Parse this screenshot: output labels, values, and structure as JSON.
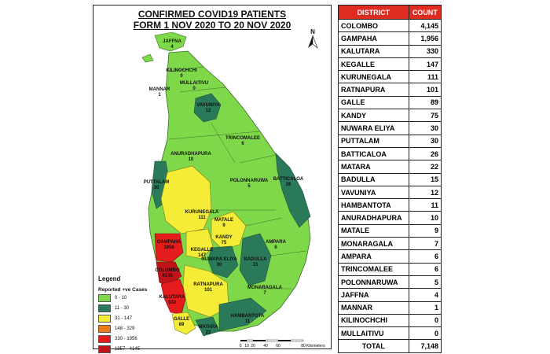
{
  "map": {
    "title_line1": "CONFIRMED COVID19 PATIENTS",
    "title_line2": "FORM 1 NOV 2020 TO 20 NOV 2020",
    "compass_label": "N",
    "legend_title": "Legend",
    "legend_subtitle": "Reported +ve Cases",
    "legend": [
      {
        "label": "0 - 10",
        "color": "#7fd84a"
      },
      {
        "label": "11 - 30",
        "color": "#2a7a5a"
      },
      {
        "label": "31 - 147",
        "color": "#f5ec38"
      },
      {
        "label": "148 - 329",
        "color": "#f07a1a"
      },
      {
        "label": "330 - 1956",
        "color": "#e51c1c"
      },
      {
        "label": "1957 - 4145",
        "color": "#c0141a"
      }
    ],
    "scale_ticks": [
      "0",
      "10",
      "20",
      "40",
      "60",
      "80"
    ],
    "scale_unit": "Kilometers",
    "labels": [
      {
        "name": "JAFFNA",
        "value": "4"
      },
      {
        "name": "KILINOCHCHI",
        "value": "0"
      },
      {
        "name": "MULLAITIVU",
        "value": "0"
      },
      {
        "name": "MANNAR",
        "value": "1"
      },
      {
        "name": "VAVUNIYA",
        "value": "12"
      },
      {
        "name": "TRINCOMALEE",
        "value": "6"
      },
      {
        "name": "ANURADHAPURA",
        "value": "10"
      },
      {
        "name": "PUTTALAM",
        "value": "30"
      },
      {
        "name": "POLONNARUWA",
        "value": "5"
      },
      {
        "name": "BATTICALOA",
        "value": "26"
      },
      {
        "name": "KURUNEGALA",
        "value": "111"
      },
      {
        "name": "MATALE",
        "value": "9"
      },
      {
        "name": "KANDY",
        "value": "75"
      },
      {
        "name": "GAMPAHA",
        "value": "1956"
      },
      {
        "name": "KEGALLE",
        "value": "147"
      },
      {
        "name": "NUWARA ELIYA",
        "value": "30"
      },
      {
        "name": "BADULLA",
        "value": "15"
      },
      {
        "name": "AMPARA",
        "value": "6"
      },
      {
        "name": "COLOMBO",
        "value": "4145"
      },
      {
        "name": "KALUTARA",
        "value": "330"
      },
      {
        "name": "RATNAPURA",
        "value": "101"
      },
      {
        "name": "MONARAGALA",
        "value": "7"
      },
      {
        "name": "GALLE",
        "value": "89"
      },
      {
        "name": "HAMBANTOTA",
        "value": "11"
      },
      {
        "name": "MATARA",
        "value": "22"
      }
    ]
  },
  "table": {
    "header_district": "DISTRICT",
    "header_count": "COUNT",
    "rows": [
      {
        "district": "COLOMBO",
        "count": "4,145"
      },
      {
        "district": "GAMPAHA",
        "count": "1,956"
      },
      {
        "district": "KALUTARA",
        "count": "330"
      },
      {
        "district": "KEGALLE",
        "count": "147"
      },
      {
        "district": "KURUNEGALA",
        "count": "111"
      },
      {
        "district": "RATNAPURA",
        "count": "101"
      },
      {
        "district": "GALLE",
        "count": "89"
      },
      {
        "district": "KANDY",
        "count": "75"
      },
      {
        "district": "NUWARA ELIYA",
        "count": "30"
      },
      {
        "district": "PUTTALAM",
        "count": "30"
      },
      {
        "district": "BATTICALOA",
        "count": "26"
      },
      {
        "district": "MATARA",
        "count": "22"
      },
      {
        "district": "BADULLA",
        "count": "15"
      },
      {
        "district": "VAVUNIYA",
        "count": "12"
      },
      {
        "district": "HAMBANTOTA",
        "count": "11"
      },
      {
        "district": "ANURADHAPURA",
        "count": "10"
      },
      {
        "district": "MATALE",
        "count": "9"
      },
      {
        "district": "MONARAGALA",
        "count": "7"
      },
      {
        "district": "AMPARA",
        "count": "6"
      },
      {
        "district": "TRINCOMALEE",
        "count": "6"
      },
      {
        "district": "POLONNARUWA",
        "count": "5"
      },
      {
        "district": "JAFFNA",
        "count": "4"
      },
      {
        "district": "MANNAR",
        "count": "1"
      },
      {
        "district": "KILINOCHCHI",
        "count": "0"
      },
      {
        "district": "MULLAITIVU",
        "count": "0"
      }
    ],
    "total_label": "TOTAL",
    "total_count": "7,148"
  }
}
